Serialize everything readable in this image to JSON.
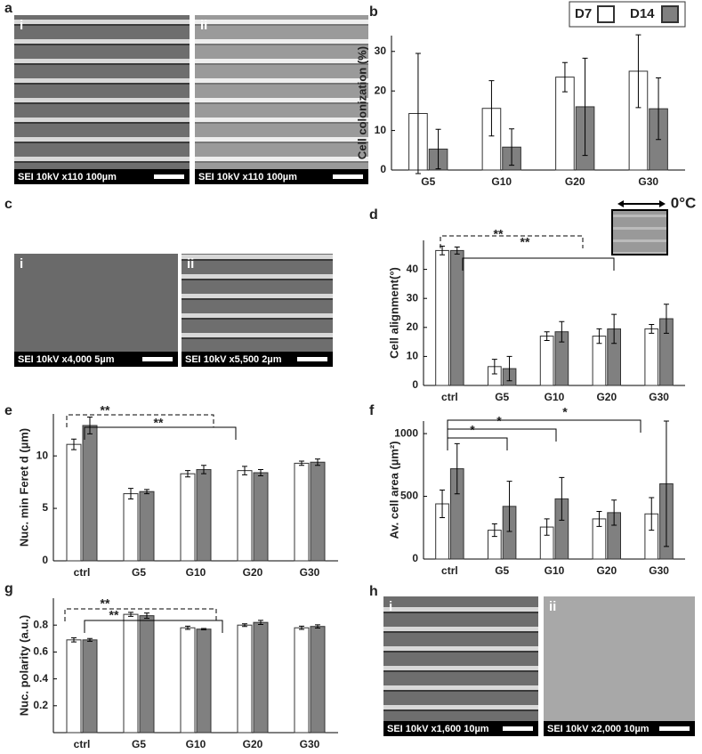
{
  "chart_data": [
    {
      "type": "bar",
      "panel": "b",
      "ylabel": "Cell colonization (%)",
      "categories": [
        "G5",
        "G10",
        "G20",
        "G30"
      ],
      "series": [
        {
          "name": "D7",
          "color": "#ffffff",
          "values": [
            14.3,
            15.6,
            23.5,
            25
          ],
          "errors": [
            15.2,
            7,
            3.7,
            9.2
          ]
        },
        {
          "name": "D14",
          "color": "#808080",
          "values": [
            5.3,
            5.8,
            16,
            15.5
          ],
          "errors": [
            5,
            4.6,
            12.3,
            7.8
          ]
        }
      ],
      "ylim": [
        0,
        34
      ],
      "yticks": [
        0,
        10,
        20,
        30
      ],
      "legend": "top-right",
      "annotations": []
    },
    {
      "type": "bar",
      "panel": "d",
      "ylabel": "Cell alignment(°)",
      "categories": [
        "ctrl",
        "G5",
        "G10",
        "G20",
        "G30"
      ],
      "series": [
        {
          "color": "#ffffff",
          "values": [
            46.5,
            6.5,
            17,
            17,
            19.5
          ],
          "errors": [
            1.5,
            2.5,
            1.5,
            2.5,
            1.5
          ]
        },
        {
          "color": "#808080",
          "values": [
            46.5,
            5.8,
            18.5,
            19.5,
            23
          ],
          "errors": [
            1.2,
            4.2,
            3.5,
            5,
            5
          ]
        }
      ],
      "ylim": [
        0,
        50
      ],
      "yticks": [
        0,
        10,
        20,
        30,
        40
      ],
      "annotations": [
        "**",
        "**",
        "0°C"
      ]
    },
    {
      "type": "bar",
      "panel": "e",
      "ylabel": "Nuc. min Feret d (µm)",
      "categories": [
        "ctrl",
        "G5",
        "G10",
        "G20",
        "G30"
      ],
      "series": [
        {
          "color": "#ffffff",
          "values": [
            11.1,
            6.4,
            8.3,
            8.6,
            9.3
          ],
          "errors": [
            0.5,
            0.5,
            0.3,
            0.4,
            0.2
          ]
        },
        {
          "color": "#808080",
          "values": [
            12.9,
            6.6,
            8.7,
            8.4,
            9.4
          ],
          "errors": [
            0.8,
            0.2,
            0.4,
            0.3,
            0.3
          ]
        }
      ],
      "ylim": [
        0,
        14
      ],
      "yticks": [
        0,
        5,
        10
      ],
      "annotations": [
        "**",
        "**"
      ]
    },
    {
      "type": "bar",
      "panel": "f",
      "ylabel": "Av. cell area (µm²)",
      "categories": [
        "ctrl",
        "G5",
        "G10",
        "G20",
        "G30"
      ],
      "series": [
        {
          "color": "#ffffff",
          "values": [
            440,
            230,
            255,
            320,
            360
          ],
          "errors": [
            110,
            50,
            65,
            60,
            130
          ]
        },
        {
          "color": "#808080",
          "values": [
            720,
            420,
            480,
            370,
            600
          ],
          "errors": [
            200,
            200,
            170,
            100,
            500
          ]
        }
      ],
      "ylim": [
        0,
        1100
      ],
      "yticks": [
        0,
        500,
        1000
      ],
      "annotations": [
        "*",
        "*",
        "*"
      ]
    },
    {
      "type": "bar",
      "panel": "g",
      "ylabel": "Nuc. polarity (a.u.)",
      "categories": [
        "ctrl",
        "G5",
        "G10",
        "G20",
        "G30"
      ],
      "series": [
        {
          "color": "#ffffff",
          "values": [
            0.69,
            0.88,
            0.78,
            0.8,
            0.78
          ],
          "errors": [
            0.015,
            0.015,
            0.012,
            0.01,
            0.012
          ]
        },
        {
          "color": "#808080",
          "values": [
            0.69,
            0.87,
            0.77,
            0.82,
            0.79
          ],
          "errors": [
            0.01,
            0.02,
            0.005,
            0.015,
            0.012
          ]
        }
      ],
      "ylim": [
        0,
        1
      ],
      "yticks": [
        0.2,
        0.4,
        0.6,
        0.8
      ],
      "annotations": [
        "**",
        "**"
      ]
    }
  ],
  "images": [
    {
      "panel": "a",
      "items": [
        {
          "label": "i",
          "caption": "SEI  10kV  x110  100µm"
        },
        {
          "label": "ii",
          "caption": "SEI  10kV  x110  100µm"
        }
      ]
    },
    {
      "panel": "c",
      "items": [
        {
          "label": "i",
          "caption": "SEI  10kV  x4,000  5µm"
        },
        {
          "label": "ii",
          "caption": "SEI  10kV  x5,500  2µm"
        }
      ]
    },
    {
      "panel": "h",
      "items": [
        {
          "label": "i",
          "caption": "SEI  10kV  x1,600  10µm"
        },
        {
          "label": "ii",
          "caption": "SEI  10kV  x2,000  10µm"
        }
      ]
    }
  ]
}
